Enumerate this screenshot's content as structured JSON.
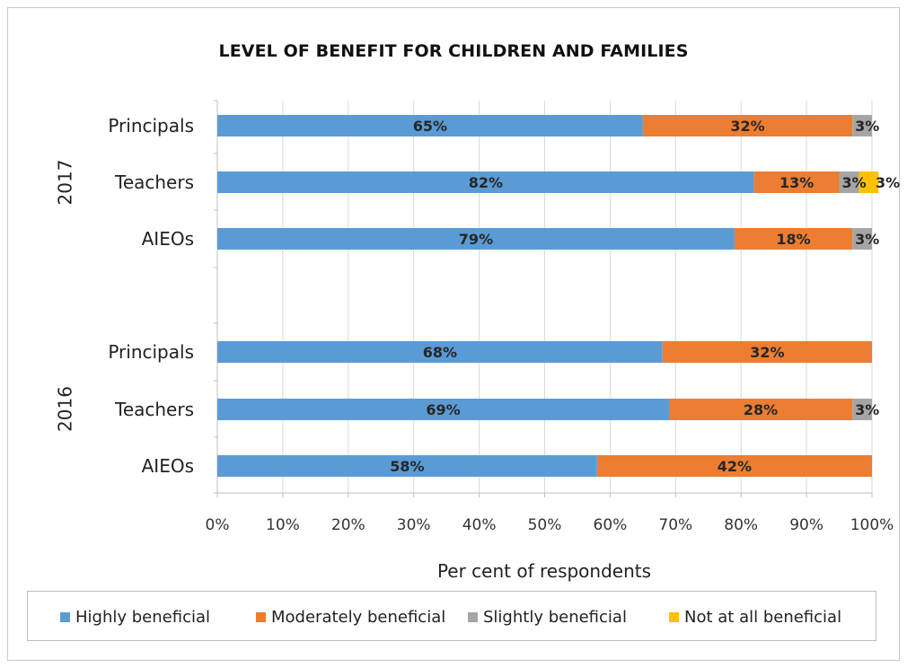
{
  "chart_data": {
    "type": "bar",
    "orientation": "horizontal",
    "stacked": true,
    "title": "LEVEL OF BENEFIT FOR CHILDREN AND FAMILIES",
    "xlabel": "Per cent of respondents",
    "ylabel": "",
    "xlim": [
      0,
      100
    ],
    "x_ticks": [
      "0%",
      "10%",
      "20%",
      "30%",
      "40%",
      "50%",
      "60%",
      "70%",
      "80%",
      "90%",
      "100%"
    ],
    "grid": "vertical",
    "legend_position": "bottom",
    "groups": [
      {
        "label": "2017",
        "categories": [
          "Principals",
          "Teachers",
          "AIEOs"
        ]
      },
      {
        "label": "2016",
        "categories": [
          "Principals",
          "Teachers",
          "AIEOs"
        ]
      }
    ],
    "categories": [
      "2017 Principals",
      "2017 Teachers",
      "2017 AIEOs",
      "2016 Principals",
      "2016 Teachers",
      "2016 AIEOs"
    ],
    "series": [
      {
        "name": "Highly beneficial",
        "color": "#5b9bd5",
        "values": [
          65,
          82,
          79,
          68,
          69,
          58
        ],
        "labels": [
          "65%",
          "82%",
          "79%",
          "68%",
          "69%",
          "58%"
        ]
      },
      {
        "name": "Moderately beneficial",
        "color": "#ed7d31",
        "values": [
          32,
          13,
          18,
          32,
          28,
          42
        ],
        "labels": [
          "32%",
          "13%",
          "18%",
          "32%",
          "28%",
          "42%"
        ]
      },
      {
        "name": "Slightly beneficial",
        "color": "#a5a5a5",
        "values": [
          3,
          3,
          3,
          0,
          3,
          0
        ],
        "labels": [
          "3%",
          "3%",
          "3%",
          "",
          "3%",
          ""
        ]
      },
      {
        "name": "Not at all beneficial",
        "color": "#ffc000",
        "values": [
          0,
          3,
          0,
          0,
          0,
          0
        ],
        "labels": [
          "",
          "3%",
          "",
          "",
          "",
          ""
        ]
      }
    ]
  }
}
